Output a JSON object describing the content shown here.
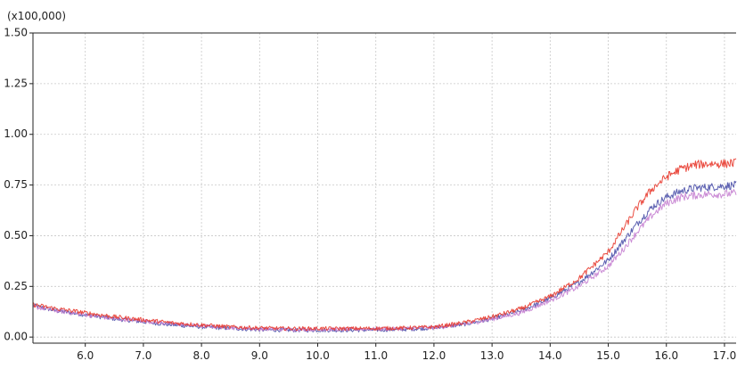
{
  "chart_data": {
    "type": "line",
    "title": "",
    "xlabel": "",
    "ylabel": "",
    "y_multiplier_label": "(x100,000)",
    "xlim": [
      5.1,
      17.2
    ],
    "ylim": [
      -0.03,
      1.5
    ],
    "x_ticks": [
      6.0,
      7.0,
      8.0,
      9.0,
      10.0,
      11.0,
      12.0,
      13.0,
      14.0,
      15.0,
      16.0,
      17.0
    ],
    "x_tick_labels": [
      "6.0",
      "7.0",
      "8.0",
      "9.0",
      "10.0",
      "11.0",
      "12.0",
      "13.0",
      "14.0",
      "15.0",
      "16.0",
      "17.0"
    ],
    "y_ticks": [
      0.0,
      0.25,
      0.5,
      0.75,
      1.0,
      1.25,
      1.5
    ],
    "y_tick_labels": [
      "0.00",
      "0.25",
      "0.50",
      "0.75",
      "1.00",
      "1.25",
      "1.50"
    ],
    "grid": true,
    "legend": "none",
    "x": [
      5.1,
      5.5,
      6.0,
      6.5,
      7.0,
      7.5,
      8.0,
      8.5,
      9.0,
      9.5,
      10.0,
      10.5,
      11.0,
      11.5,
      12.0,
      12.5,
      13.0,
      13.5,
      14.0,
      14.5,
      15.0,
      15.25,
      15.5,
      15.75,
      16.0,
      16.25,
      16.5,
      16.75,
      17.0,
      17.2
    ],
    "series": [
      {
        "color": "#e8392c",
        "values": [
          0.16,
          0.14,
          0.12,
          0.1,
          0.085,
          0.07,
          0.06,
          0.05,
          0.045,
          0.042,
          0.042,
          0.042,
          0.043,
          0.045,
          0.05,
          0.07,
          0.1,
          0.14,
          0.2,
          0.29,
          0.42,
          0.53,
          0.64,
          0.73,
          0.79,
          0.83,
          0.85,
          0.855,
          0.855,
          0.86
        ]
      },
      {
        "color": "#4a4fa8",
        "values": [
          0.155,
          0.13,
          0.11,
          0.09,
          0.075,
          0.06,
          0.05,
          0.043,
          0.036,
          0.034,
          0.034,
          0.034,
          0.035,
          0.038,
          0.045,
          0.062,
          0.09,
          0.13,
          0.19,
          0.27,
          0.38,
          0.47,
          0.56,
          0.64,
          0.69,
          0.72,
          0.735,
          0.74,
          0.745,
          0.75
        ]
      },
      {
        "color": "#c57fd0",
        "values": [
          0.15,
          0.13,
          0.11,
          0.09,
          0.08,
          0.065,
          0.055,
          0.047,
          0.04,
          0.038,
          0.038,
          0.038,
          0.04,
          0.042,
          0.047,
          0.062,
          0.088,
          0.12,
          0.18,
          0.25,
          0.35,
          0.43,
          0.52,
          0.6,
          0.66,
          0.69,
          0.7,
          0.705,
          0.705,
          0.71
        ]
      }
    ]
  }
}
